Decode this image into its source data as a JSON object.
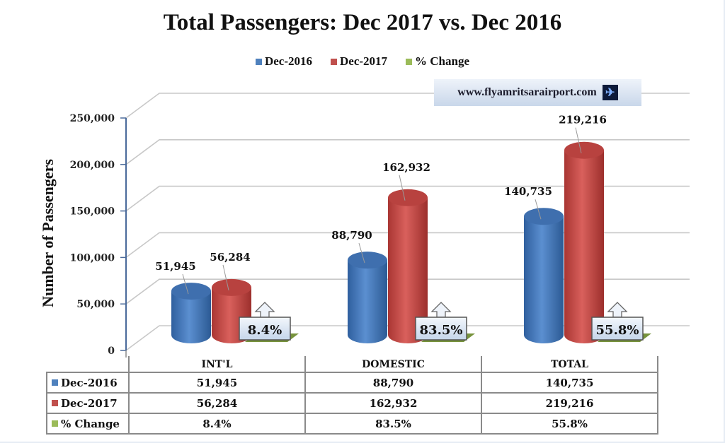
{
  "chart_data": {
    "type": "bar",
    "subtype": "3d-cylinder-clustered-with-data-table",
    "title": "Total Passengers: Dec 2017 vs. Dec 2016",
    "xlabel": "",
    "ylabel": "Number of Passengers",
    "ylim": [
      0,
      250000
    ],
    "yticks": [
      0,
      50000,
      100000,
      150000,
      200000,
      250000
    ],
    "ytick_labels": [
      "0",
      "50,000",
      "100,000",
      "150,000",
      "200,000",
      "250,000"
    ],
    "grid": true,
    "legend_position": "top",
    "categories": [
      "INT'L",
      "DOMESTIC",
      "TOTAL"
    ],
    "series": [
      {
        "name": "Dec-2016",
        "color": "#4f81bd",
        "values": [
          51945,
          88790,
          140735
        ],
        "labels": [
          "51,945",
          "88,790",
          "140,735"
        ]
      },
      {
        "name": "Dec-2017",
        "color": "#c0504d",
        "values": [
          56284,
          162932,
          219216
        ],
        "labels": [
          "56,284",
          "162,932",
          "219,216"
        ]
      },
      {
        "name": "% Change",
        "color": "#9bbb59",
        "values": [
          8.4,
          83.5,
          55.8
        ],
        "labels": [
          "8.4%",
          "83.5%",
          "55.8%"
        ]
      }
    ],
    "annotations": [
      "www.flyamritsarairport.com"
    ]
  },
  "watermark": {
    "text": "www.flyamritsarairport.com",
    "icon": "airplane-icon"
  },
  "table": {
    "columns": [
      "INT'L",
      "DOMESTIC",
      "TOTAL"
    ],
    "rows": [
      {
        "label": "Dec-2016",
        "color": "#4f81bd",
        "cells": [
          "51,945",
          "88,790",
          "140,735"
        ]
      },
      {
        "label": "Dec-2017",
        "color": "#c0504d",
        "cells": [
          "56,284",
          "162,932",
          "219,216"
        ]
      },
      {
        "label": "% Change",
        "color": "#9bbb59",
        "cells": [
          "8.4%",
          "83.5%",
          "55.8%"
        ]
      }
    ]
  }
}
